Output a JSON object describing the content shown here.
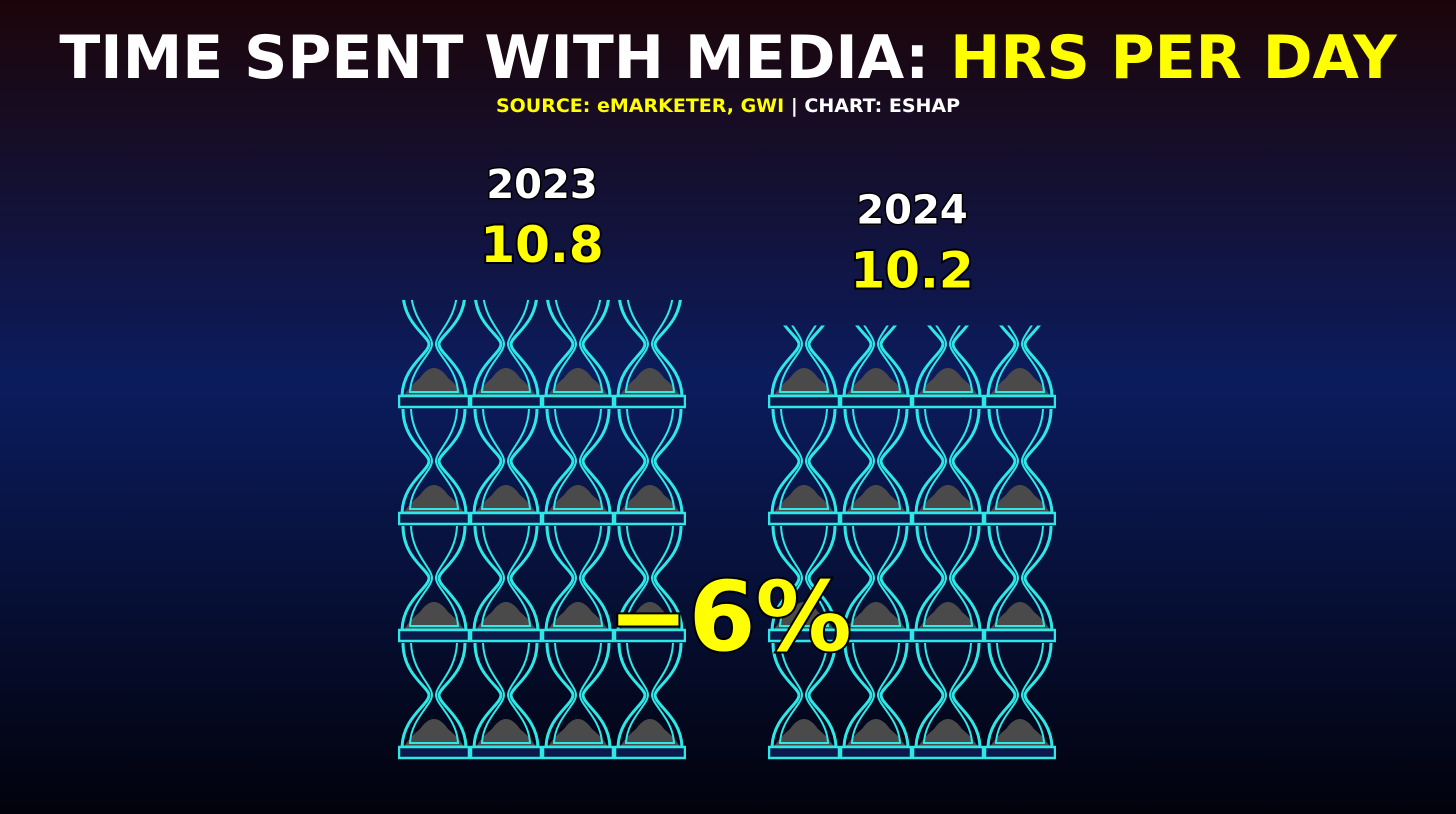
{
  "chart_data": {
    "type": "pictogram",
    "title": "TIME SPENT WITH MEDIA:",
    "title_highlight": "HRS PER DAY",
    "source": "SOURCE: eMARKETER, GWI",
    "credit": "| CHART: ESHAP",
    "categories": [
      "2023",
      "2024"
    ],
    "values": [
      10.8,
      10.2
    ],
    "annotation": "−6%",
    "color": "#2ee8e8"
  }
}
